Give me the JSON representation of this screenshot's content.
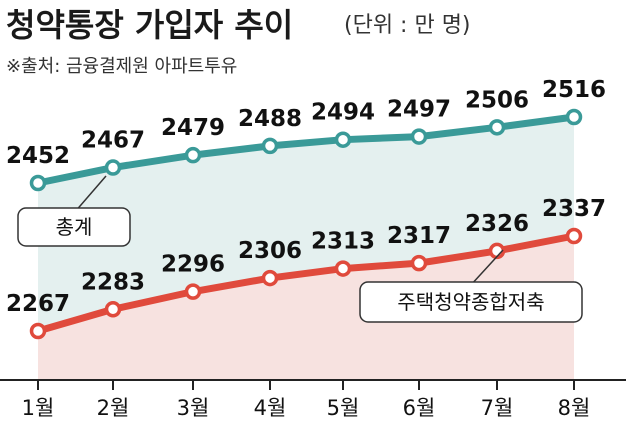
{
  "header": {
    "title": "청약통장 가입자 추이",
    "unit": "(단위 : 만 명)",
    "source": "※출처: 금융결제원 아파트투유"
  },
  "chart_data": {
    "type": "line",
    "title": "청약통장 가입자 추이",
    "unit": "(단위 : 만 명)",
    "categories": [
      "1월",
      "2월",
      "3월",
      "4월",
      "5월",
      "6월",
      "7월",
      "8월"
    ],
    "series": [
      {
        "name": "총계",
        "color": "#3a9a98",
        "fill": "#e4f0ef",
        "values": [
          2452,
          2467,
          2479,
          2488,
          2494,
          2497,
          2506,
          2516
        ]
      },
      {
        "name": "주택청약종합저축",
        "color": "#e04a3c",
        "fill": "#f7e2e0",
        "values": [
          2267,
          2283,
          2296,
          2306,
          2313,
          2317,
          2326,
          2337
        ]
      }
    ],
    "legend_placement": "inline-callouts",
    "grid": false
  }
}
